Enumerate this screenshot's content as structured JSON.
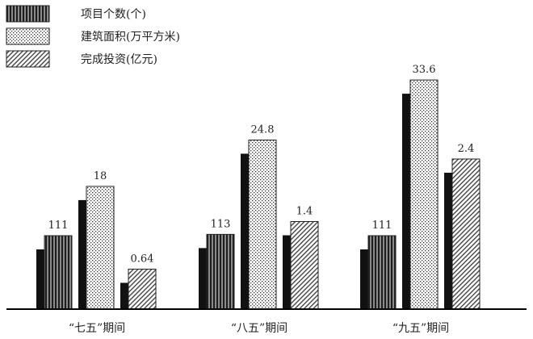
{
  "chart_data": {
    "type": "bar",
    "title": "",
    "xlabel": "",
    "ylabel": "",
    "categories": [
      "“七五”期间",
      "“八五”期间",
      "“九五”期间"
    ],
    "series": [
      {
        "name": "项目个数(个)",
        "values": [
          111,
          113,
          111
        ],
        "labels": [
          "111",
          "113",
          "111"
        ],
        "pattern": "vstripe"
      },
      {
        "name": "建筑面积(万平方米)",
        "values": [
          18,
          24.8,
          33.6
        ],
        "labels": [
          "18",
          "24.8",
          "33.6"
        ],
        "pattern": "dots"
      },
      {
        "name": "完成投资(亿元)",
        "values": [
          0.64,
          1.4,
          2.4
        ],
        "labels": [
          "0.64",
          "1.4",
          "2.4"
        ],
        "pattern": "diag"
      }
    ],
    "grid": false,
    "legend": "top-left"
  }
}
